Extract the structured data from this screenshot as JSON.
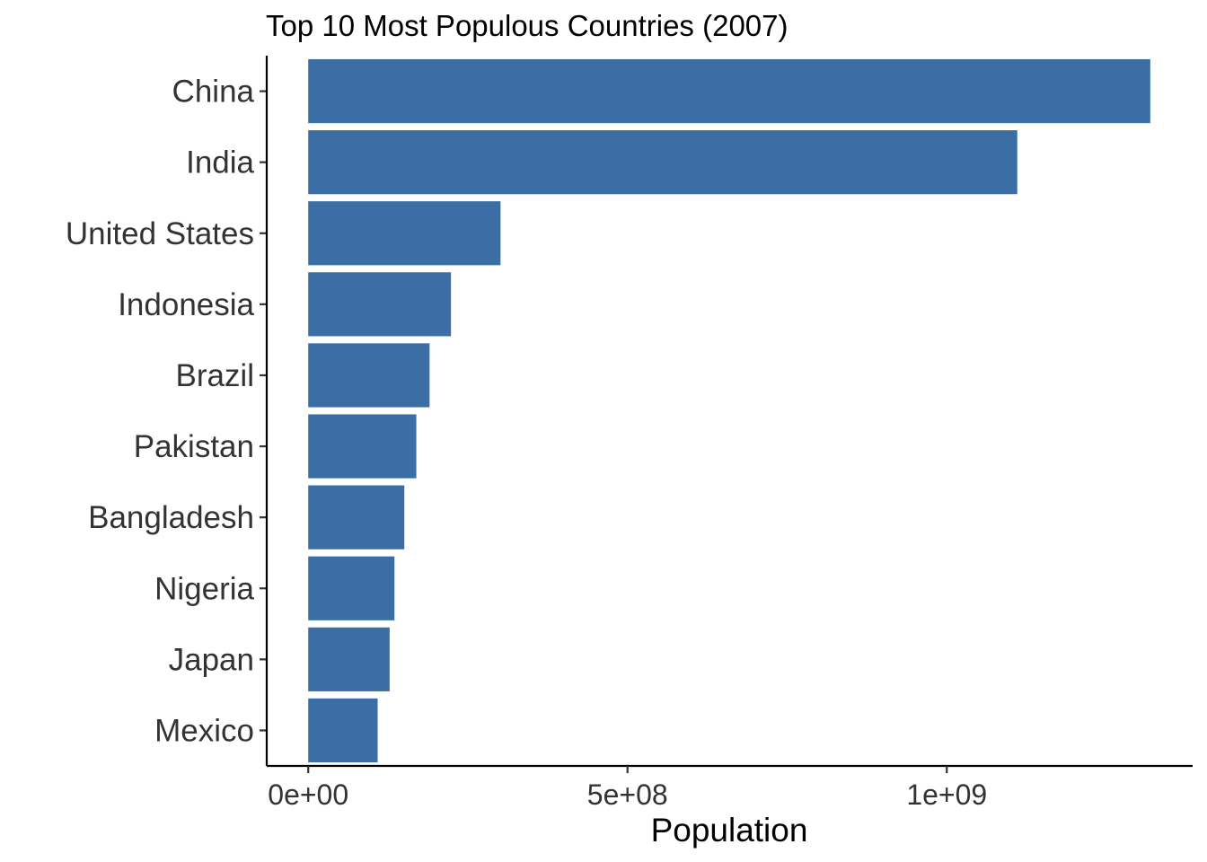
{
  "chart_data": {
    "type": "bar",
    "orientation": "horizontal",
    "title": "Top 10 Most Populous Countries (2007)",
    "xlabel": "Population",
    "ylabel": "",
    "categories": [
      "China",
      "India",
      "United States",
      "Indonesia",
      "Brazil",
      "Pakistan",
      "Bangladesh",
      "Nigeria",
      "Japan",
      "Mexico"
    ],
    "values": [
      1318683096,
      1110396331,
      301139947,
      223547000,
      190010647,
      169270617,
      150448339,
      135031164,
      127467972,
      108700891
    ],
    "xlim": [
      -65000000,
      1385000000
    ],
    "x_ticks": [
      0,
      500000000,
      1000000000
    ],
    "x_tick_labels": [
      "0e+00",
      "5e+08",
      "1e+09"
    ],
    "bar_color": "#3A6EA5",
    "grid": false,
    "legend": "none"
  }
}
